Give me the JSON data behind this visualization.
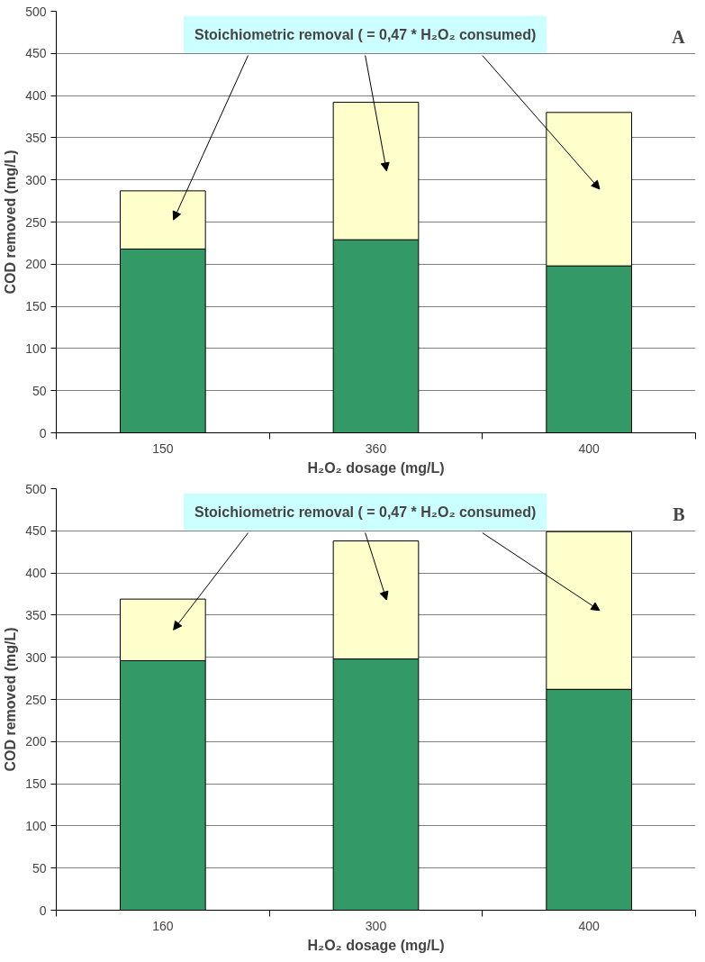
{
  "chart_data": [
    {
      "type": "bar",
      "stacked": true,
      "categories": [
        "150",
        "360",
        "400"
      ],
      "xlabel": "H₂O₂ dosage (mg/L)",
      "ylabel": "COD removed (mg/L)",
      "ylim": [
        0,
        500
      ],
      "yticks": [
        0,
        50,
        100,
        150,
        200,
        250,
        300,
        350,
        400,
        450,
        500
      ],
      "grid": "y",
      "legend": false,
      "series": [
        {
          "color": "#339966",
          "values": [
            218,
            229,
            198
          ]
        },
        {
          "color": "#ffffcc",
          "values": [
            69,
            163,
            182
          ]
        }
      ],
      "annotations": [
        "Stoichiometric removal ( = 0,47 * H₂O₂ consumed)",
        "A"
      ]
    },
    {
      "type": "bar",
      "stacked": true,
      "categories": [
        "160",
        "300",
        "400"
      ],
      "xlabel": "H₂O₂ dosage (mg/L)",
      "ylabel": "COD removed (mg/L)",
      "ylim": [
        0,
        500
      ],
      "yticks": [
        0,
        50,
        100,
        150,
        200,
        250,
        300,
        350,
        400,
        450,
        500
      ],
      "grid": "y",
      "legend": false,
      "series": [
        {
          "color": "#339966",
          "values": [
            296,
            298,
            262
          ]
        },
        {
          "color": "#ffffcc",
          "values": [
            73,
            140,
            187
          ]
        }
      ],
      "annotations": [
        "Stoichiometric removal ( = 0,47 * H₂O₂ consumed)",
        "B"
      ]
    }
  ]
}
